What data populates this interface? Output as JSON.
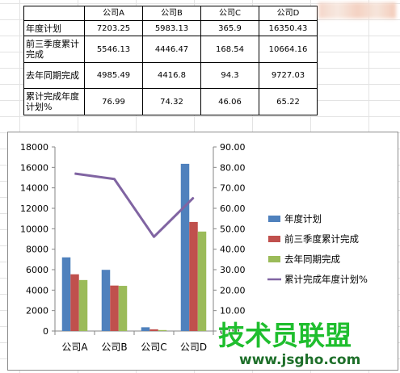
{
  "table": {
    "headers": [
      "",
      "公司A",
      "公司B",
      "公司C",
      "公司D"
    ],
    "rows": [
      {
        "label": "年度计划",
        "values": [
          "7203.25",
          "5983.13",
          "365.9",
          "16350.43"
        ]
      },
      {
        "label": "前三季度累计完成",
        "values": [
          "5546.13",
          "4446.47",
          "168.54",
          "10664.16"
        ]
      },
      {
        "label": "去年同期完成",
        "values": [
          "4985.49",
          "4416.8",
          "94.3",
          "9727.03"
        ]
      },
      {
        "label": "累计完成年度计划%",
        "values": [
          "76.99",
          "74.32",
          "46.06",
          "65.22"
        ]
      }
    ]
  },
  "chart_data": {
    "type": "bar",
    "categories": [
      "公司A",
      "公司B",
      "公司C",
      "公司D"
    ],
    "series": [
      {
        "name": "年度计划",
        "kind": "bar",
        "axis": "left",
        "color": "#4f81bd",
        "values": [
          7203.25,
          5983.13,
          365.9,
          16350.43
        ]
      },
      {
        "name": "前三季度累计完成",
        "kind": "bar",
        "axis": "left",
        "color": "#c0504d",
        "values": [
          5546.13,
          4446.47,
          168.54,
          10664.16
        ]
      },
      {
        "name": "去年同期完成",
        "kind": "bar",
        "axis": "left",
        "color": "#9bbb59",
        "values": [
          4985.49,
          4416.8,
          94.3,
          9727.03
        ]
      },
      {
        "name": "累计完成年度计划%",
        "kind": "line",
        "axis": "right",
        "color": "#8064a2",
        "values": [
          76.99,
          74.32,
          46.06,
          65.22
        ]
      }
    ],
    "y_left": {
      "min": 0,
      "max": 18000,
      "step": 2000,
      "ticks": [
        "0",
        "2000",
        "4000",
        "6000",
        "8000",
        "10000",
        "12000",
        "14000",
        "16000",
        "18000"
      ]
    },
    "y_right": {
      "min": 0,
      "max": 90,
      "step": 10,
      "ticks": [
        "0.00",
        "10.00",
        "20.00",
        "30.00",
        "40.00",
        "50.00",
        "60.00",
        "70.00",
        "80.00",
        "90.00"
      ]
    },
    "grid": false,
    "legend": "right",
    "title": "",
    "xlabel": "",
    "ylabel": ""
  },
  "watermark": {
    "line1": "技术员联盟",
    "line2": "www.jsgho.com"
  }
}
